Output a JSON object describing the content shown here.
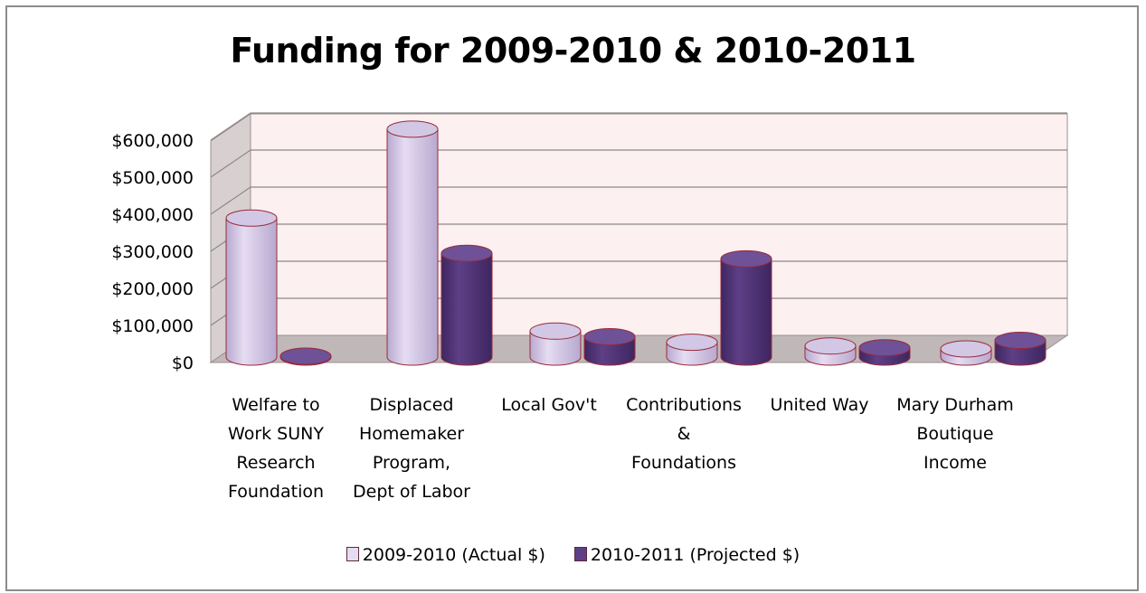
{
  "chart_data": {
    "type": "bar",
    "style": "3d-cylinder",
    "title": "Funding for 2009-2010 & 2010-2011",
    "categories": [
      [
        "Welfare to",
        "Work SUNY",
        "Research",
        "Foundation"
      ],
      [
        "Displaced",
        "Homemaker",
        "Program,",
        "Dept of Labor"
      ],
      [
        "Local Gov't"
      ],
      [
        "Contributions",
        "&",
        "Foundations"
      ],
      [
        "United Way"
      ],
      [
        "Mary Durham",
        "Boutique",
        "Income"
      ]
    ],
    "series": [
      {
        "name": "2009-2010 (Actual $)",
        "color": "#e6dcf2",
        "values": [
          375000,
          615000,
          70000,
          40000,
          30000,
          22000
        ]
      },
      {
        "name": "2010-2011 (Projected $)",
        "color": "#5e3f86",
        "values": [
          2000,
          280000,
          55000,
          265000,
          25000,
          45000
        ]
      }
    ],
    "yaxis": {
      "ticks": [
        "$0",
        "$100,000",
        "$200,000",
        "$300,000",
        "$400,000",
        "$500,000",
        "$600,000"
      ],
      "ylim": [
        0,
        600000
      ]
    },
    "wall_color": "#fdf0f0",
    "floor_color": "#c0b8b8",
    "grid": true,
    "legend_position": "bottom"
  }
}
